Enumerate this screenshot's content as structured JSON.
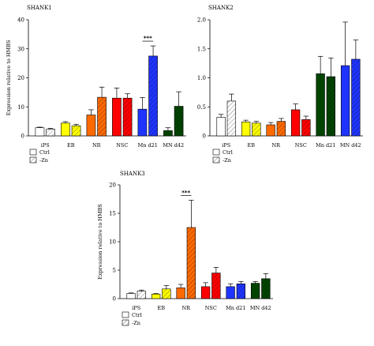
{
  "chart_data": [
    {
      "type": "bar",
      "title": "SHANK1",
      "ylabel": "Expression relative to HMBS",
      "ylim": [
        0,
        40
      ],
      "yticks": [
        "0",
        "10",
        "20",
        "30",
        "40"
      ],
      "categories": [
        "iPS",
        "EB",
        "NR",
        "NSC",
        "Mn d21",
        "MN d42"
      ],
      "series": [
        {
          "name": "Ctrl",
          "values": [
            2.8,
            4.4,
            7.2,
            13.0,
            9.2,
            1.8
          ],
          "errors": [
            0.2,
            0.5,
            1.8,
            3.5,
            4.0,
            1.0
          ]
        },
        {
          "name": "-Zn",
          "values": [
            2.3,
            3.5,
            13.3,
            13.0,
            27.5,
            10.2
          ],
          "errors": [
            0.3,
            0.5,
            3.5,
            1.5,
            3.5,
            5.0
          ]
        }
      ],
      "colors": [
        "#ffffff",
        "#ffff00",
        "#ff6a00",
        "#ff0000",
        "#1f35ff",
        "#004400"
      ],
      "significance": {
        "label": "***",
        "category": "Mn d21"
      },
      "legend": [
        "Ctrl",
        "-Zn"
      ]
    },
    {
      "type": "bar",
      "title": "SHANK2",
      "ylabel": "",
      "ylim": [
        0,
        2.0
      ],
      "yticks": [
        "0",
        "0.5",
        "1.0",
        "1.5",
        "2.0"
      ],
      "categories": [
        "iPS",
        "EB",
        "NR",
        "NSC",
        "Mn d21",
        "MN d42"
      ],
      "series": [
        {
          "name": "Ctrl",
          "values": [
            0.32,
            0.24,
            0.19,
            0.45,
            1.07,
            1.21
          ],
          "errors": [
            0.05,
            0.03,
            0.04,
            0.1,
            0.3,
            0.75
          ]
        },
        {
          "name": "-Zn",
          "values": [
            0.6,
            0.22,
            0.25,
            0.28,
            1.02,
            1.32
          ],
          "errors": [
            0.12,
            0.03,
            0.05,
            0.06,
            0.32,
            0.33
          ]
        }
      ],
      "colors": [
        "#ffffff",
        "#ffff00",
        "#ff6a00",
        "#ff0000",
        "#004400",
        "#1f35ff"
      ],
      "legend": [
        "Ctrl",
        "-Zn"
      ]
    },
    {
      "type": "bar",
      "title": "SHANK3",
      "ylabel": "Expression relative to HMBS",
      "ylim": [
        0,
        20
      ],
      "yticks": [
        "0",
        "5",
        "10",
        "15",
        "20"
      ],
      "categories": [
        "iPS",
        "EB",
        "NR",
        "NSC",
        "Mn d21",
        "MN d42"
      ],
      "series": [
        {
          "name": "Ctrl",
          "values": [
            0.9,
            0.8,
            1.9,
            2.1,
            2.1,
            2.7
          ],
          "errors": [
            0.1,
            0.1,
            0.6,
            0.7,
            0.5,
            0.3
          ]
        },
        {
          "name": "-Zn",
          "values": [
            1.3,
            1.7,
            12.5,
            4.5,
            2.6,
            3.5
          ],
          "errors": [
            0.2,
            0.6,
            4.8,
            1.0,
            0.4,
            0.9
          ]
        }
      ],
      "colors": [
        "#ffffff",
        "#ffff00",
        "#ff6a00",
        "#ff0000",
        "#1f35ff",
        "#004400"
      ],
      "significance": {
        "label": "***",
        "category": "NR"
      },
      "legend": [
        "Ctrl",
        "-Zn"
      ]
    }
  ]
}
